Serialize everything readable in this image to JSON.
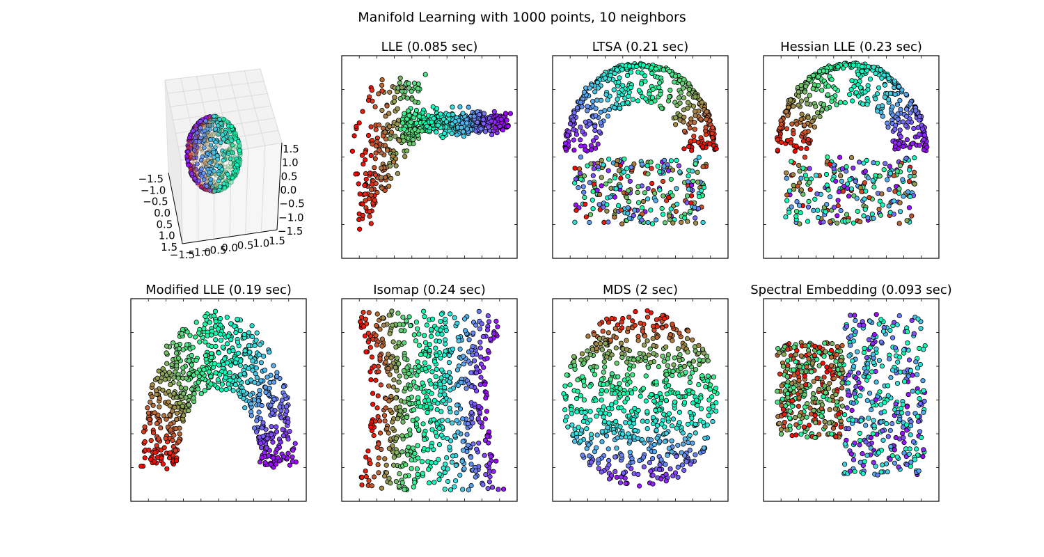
{
  "figure_title": "Manifold Learning with 1000 points, 10 neighbors",
  "chart_data": [
    {
      "type": "scatter3d",
      "panel": "3d-sphere",
      "title": "",
      "n_points": 1000,
      "colormap": "rainbow",
      "xlim": [
        -1.5,
        1.5
      ],
      "ylim": [
        -1.5,
        1.5
      ],
      "zlim": [
        -1.5,
        1.5
      ],
      "x_ticklabels": [
        "−1.5",
        "−1.0",
        "−0.5",
        "0.0",
        "0.5",
        "1.0",
        "1.5"
      ],
      "y_ticklabels": [
        "−1.5",
        "−1.0",
        "−0.5",
        "0.0",
        "0.5",
        "1.0",
        "1.5"
      ],
      "z_ticklabels": [
        "1.5",
        "1.0",
        "0.5",
        "0.0",
        "−0.5",
        "−1.0",
        "−1.5"
      ]
    },
    {
      "type": "scatter",
      "method": "LLE",
      "title": "LLE (0.085 sec)",
      "shape": "butterfly-left",
      "n_points": 1000,
      "colormap": "rainbow"
    },
    {
      "type": "scatter",
      "method": "LTSA",
      "title": "LTSA (0.21 sec)",
      "shape": "cup",
      "n_points": 1000,
      "colormap": "rainbow"
    },
    {
      "type": "scatter",
      "method": "Hessian LLE",
      "title": "Hessian LLE (0.23 sec)",
      "shape": "cup-mirrored",
      "n_points": 1000,
      "colormap": "rainbow"
    },
    {
      "type": "scatter",
      "method": "Modified LLE",
      "title": "Modified LLE (0.19 sec)",
      "shape": "arch",
      "n_points": 1000,
      "colormap": "rainbow"
    },
    {
      "type": "scatter",
      "method": "Isomap",
      "title": "Isomap (0.24 sec)",
      "shape": "pinched-square",
      "n_points": 1000,
      "colormap": "rainbow"
    },
    {
      "type": "scatter",
      "method": "MDS",
      "title": "MDS (2 sec)",
      "shape": "disk",
      "n_points": 1000,
      "colormap": "rainbow"
    },
    {
      "type": "scatter",
      "method": "Spectral Embedding",
      "title": "Spectral Embedding (0.093 sec)",
      "shape": "butterfly",
      "n_points": 1000,
      "colormap": "rainbow"
    }
  ]
}
